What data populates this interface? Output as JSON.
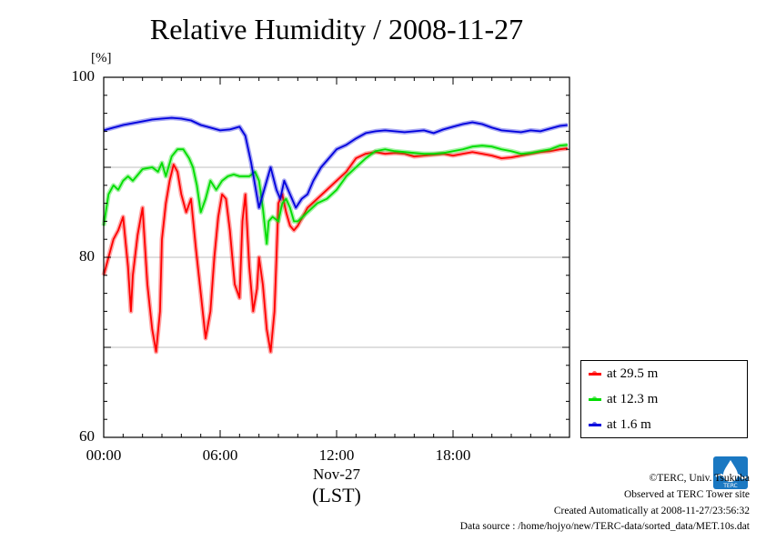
{
  "chart_data": {
    "type": "line",
    "title": "Relative Humidity / 2008-11-27",
    "ylabel": "[%]",
    "ylim": [
      60,
      100
    ],
    "yticks": [
      "60",
      "80",
      "100"
    ],
    "xlim": [
      0,
      24
    ],
    "xticks": [
      {
        "label": "00:00",
        "value": 0
      },
      {
        "label": "06:00",
        "value": 6
      },
      {
        "label": "12:00",
        "value": 12
      },
      {
        "label": "18:00",
        "value": 18
      }
    ],
    "date_label": "Nov-27",
    "xlabel": "(LST)",
    "grid": true,
    "legend": "bottom-right",
    "series": [
      {
        "name": "at 29.5 m",
        "color": "#ff0000",
        "x": [
          0,
          0.25,
          0.5,
          0.75,
          1.0,
          1.25,
          1.4,
          1.5,
          1.75,
          2.0,
          2.25,
          2.5,
          2.7,
          2.9,
          3.0,
          3.2,
          3.4,
          3.6,
          3.8,
          4.0,
          4.25,
          4.5,
          4.75,
          5.0,
          5.25,
          5.5,
          5.7,
          5.9,
          6.1,
          6.3,
          6.5,
          6.75,
          7.0,
          7.15,
          7.3,
          7.5,
          7.7,
          7.9,
          8.0,
          8.2,
          8.4,
          8.6,
          8.8,
          8.9,
          9.0,
          9.2,
          9.4,
          9.6,
          9.8,
          10.0,
          10.25,
          10.5,
          11.0,
          11.5,
          12.0,
          12.5,
          13.0,
          13.5,
          14.0,
          14.5,
          15.0,
          15.5,
          16.0,
          16.5,
          17.0,
          17.5,
          18.0,
          18.5,
          19.0,
          19.5,
          20.0,
          20.5,
          21.0,
          21.5,
          22.0,
          22.5,
          23.0,
          23.5,
          23.9
        ],
        "y": [
          78,
          80,
          82,
          83,
          84.5,
          79,
          74,
          78,
          82.5,
          85.5,
          77,
          72,
          69.5,
          74,
          82,
          86,
          88.5,
          90.3,
          89.5,
          87,
          85,
          86.5,
          81,
          76,
          71,
          74,
          80,
          84.5,
          87,
          86.5,
          83,
          77,
          75.5,
          84,
          87,
          79,
          74,
          76.5,
          80,
          77,
          72,
          69.5,
          74,
          80,
          86,
          87,
          85,
          83.5,
          83,
          83.5,
          84.5,
          85.5,
          86.5,
          87.5,
          88.5,
          89.5,
          91,
          91.5,
          91.7,
          91.5,
          91.6,
          91.5,
          91.2,
          91.3,
          91.4,
          91.5,
          91.3,
          91.5,
          91.7,
          91.5,
          91.3,
          91.0,
          91.1,
          91.3,
          91.5,
          91.7,
          91.8,
          92.0,
          92.1
        ]
      },
      {
        "name": "at 12.3 m",
        "color": "#00dd00",
        "x": [
          0,
          0.25,
          0.5,
          0.75,
          1.0,
          1.25,
          1.5,
          2.0,
          2.5,
          2.8,
          3.0,
          3.2,
          3.5,
          3.8,
          4.1,
          4.4,
          4.6,
          4.8,
          5.0,
          5.25,
          5.5,
          5.8,
          6.1,
          6.4,
          6.7,
          7.0,
          7.5,
          7.8,
          8.0,
          8.2,
          8.4,
          8.5,
          8.7,
          9.0,
          9.2,
          9.4,
          9.6,
          9.8,
          10.0,
          10.25,
          10.5,
          11.0,
          11.5,
          12.0,
          12.5,
          13.0,
          13.5,
          14.0,
          14.5,
          15.0,
          15.5,
          16.0,
          16.5,
          17.0,
          17.5,
          18.0,
          18.5,
          19.0,
          19.5,
          20.0,
          20.5,
          21.0,
          21.5,
          22.0,
          22.5,
          23.0,
          23.5,
          23.9
        ],
        "y": [
          83.5,
          87,
          88,
          87.5,
          88.5,
          89,
          88.5,
          89.8,
          90,
          89.5,
          90.5,
          89,
          91.2,
          92,
          92,
          91,
          90,
          88,
          85,
          86.5,
          88.5,
          87.5,
          88.5,
          89,
          89.2,
          89,
          89,
          89.5,
          88.5,
          85.5,
          81.5,
          84,
          84.5,
          84,
          86,
          86.5,
          85.5,
          84,
          84,
          84.5,
          85,
          86,
          86.5,
          87.5,
          89,
          90,
          91,
          91.8,
          92,
          91.8,
          91.7,
          91.6,
          91.5,
          91.5,
          91.6,
          91.8,
          92.0,
          92.3,
          92.4,
          92.3,
          92.0,
          91.8,
          91.5,
          91.6,
          91.8,
          92.0,
          92.4,
          92.5
        ]
      },
      {
        "name": "at 1.6 m",
        "color": "#0000dd",
        "x": [
          0,
          0.5,
          1.0,
          1.5,
          2.0,
          2.5,
          3.0,
          3.5,
          4.0,
          4.5,
          5.0,
          5.5,
          6.0,
          6.5,
          7.0,
          7.3,
          7.6,
          7.8,
          8.0,
          8.2,
          8.4,
          8.6,
          8.9,
          9.1,
          9.3,
          9.6,
          9.9,
          10.2,
          10.5,
          10.8,
          11.2,
          11.6,
          12.0,
          12.5,
          13.0,
          13.5,
          14.0,
          14.5,
          15.0,
          15.5,
          16.0,
          16.5,
          17.0,
          17.5,
          18.0,
          18.5,
          19.0,
          19.5,
          20.0,
          20.5,
          21.0,
          21.5,
          22.0,
          22.5,
          23.0,
          23.5,
          23.9
        ],
        "y": [
          94.1,
          94.4,
          94.7,
          94.9,
          95.1,
          95.3,
          95.4,
          95.5,
          95.4,
          95.2,
          94.7,
          94.4,
          94.1,
          94.2,
          94.5,
          93.5,
          90.5,
          88,
          85.5,
          87,
          88.5,
          90,
          87.5,
          86.5,
          88.5,
          87,
          85.5,
          86.5,
          87,
          88.5,
          90,
          91,
          92,
          92.5,
          93.2,
          93.8,
          94,
          94.1,
          94,
          93.9,
          94.0,
          94.1,
          93.8,
          94.2,
          94.5,
          94.8,
          95.0,
          94.8,
          94.4,
          94.1,
          94.0,
          93.9,
          94.1,
          94.0,
          94.3,
          94.6,
          94.7
        ]
      }
    ]
  },
  "footer": {
    "copyright": "©TERC, Univ. Tsukuba",
    "observed": "Observed at TERC Tower site",
    "created": "Created Automatically at 2008-11-27/23:56:32",
    "source": "Data source : /home/hojyo/new/TERC-data/sorted_data/MET.10s.dat"
  },
  "logo": {
    "icon": "terc-logo-icon",
    "text": "TERC",
    "color": "#1a78c2"
  }
}
